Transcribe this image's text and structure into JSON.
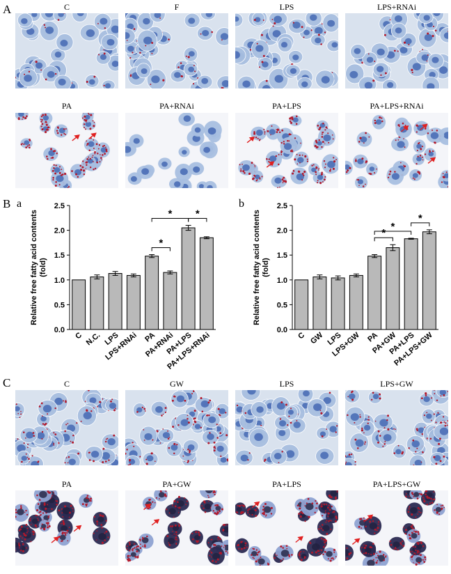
{
  "figure": {
    "panel_A": "A",
    "panel_B": "B",
    "panel_C": "C",
    "sub_a": "a",
    "sub_b": "b"
  },
  "panel_A_images": {
    "row1": [
      "C",
      "F",
      "LPS",
      "LPS+RNAi"
    ],
    "row2": [
      "PA",
      "PA+RNAi",
      "PA+LPS",
      "PA+LPS+RNAi"
    ]
  },
  "panel_C_images": {
    "row1": [
      "C",
      "GW",
      "LPS",
      "LPS+GW"
    ],
    "row2": [
      "PA",
      "PA+GW",
      "PA+LPS",
      "PA+LPS+GW"
    ]
  },
  "colors": {
    "bar_fill": "#b9b9b9",
    "stain_background": "#d9e2ee",
    "nucleus_blue": "#3f63b0",
    "lipid_red": "#b2182b",
    "arrow_red": "#e02020"
  },
  "chart_data": [
    {
      "type": "bar",
      "panel": "a",
      "categories": [
        "C",
        "N.C.",
        "LPS",
        "LPS+RNAi",
        "PA",
        "PA+RNAi",
        "PA+LPS",
        "PA+LPS+RNAi"
      ],
      "values": [
        1.0,
        1.06,
        1.13,
        1.09,
        1.48,
        1.15,
        2.05,
        1.85
      ],
      "errors": [
        0.0,
        0.04,
        0.04,
        0.03,
        0.03,
        0.03,
        0.05,
        0.02
      ],
      "ylabel": "Relative free fatty acid contents (fold)",
      "ylim": [
        0.0,
        2.5
      ],
      "yticks": [
        "0.0",
        "0.5",
        "1.0",
        "1.5",
        "2.0",
        "2.5"
      ],
      "significance": [
        {
          "from": 4,
          "to": 6,
          "label": "*"
        },
        {
          "from": 4,
          "to": 5,
          "label": "*"
        },
        {
          "from": 6,
          "to": 7,
          "label": "*"
        }
      ]
    },
    {
      "type": "bar",
      "panel": "b",
      "categories": [
        "C",
        "GW",
        "LPS",
        "LPS+GW",
        "PA",
        "PA+GW",
        "PA+LPS",
        "PA+LPS+GW"
      ],
      "values": [
        1.0,
        1.06,
        1.04,
        1.09,
        1.48,
        1.65,
        1.83,
        1.97
      ],
      "errors": [
        0.0,
        0.04,
        0.04,
        0.03,
        0.03,
        0.06,
        0.01,
        0.04
      ],
      "ylabel": "Relative free fatty acid contents (fold)",
      "ylim": [
        0.0,
        2.5
      ],
      "yticks": [
        "0.0",
        "0.5",
        "1.0",
        "1.5",
        "2.0",
        "2.5"
      ],
      "significance": [
        {
          "from": 4,
          "to": 5,
          "label": "*"
        },
        {
          "from": 4,
          "to": 6,
          "label": "*"
        },
        {
          "from": 6,
          "to": 7,
          "label": "*"
        }
      ]
    }
  ]
}
